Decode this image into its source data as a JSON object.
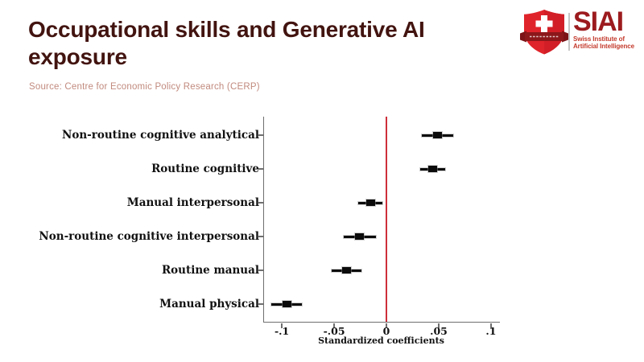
{
  "header": {
    "title": "Occupational skills and Generative AI exposure",
    "source": "Source: Centre for Economic Policy Research (CERP)"
  },
  "logo": {
    "acronym": "SIAI",
    "name_line1": "Swiss Institute of",
    "name_line2": "Artificial Intelligence"
  },
  "colors": {
    "title_maroon": "#421410",
    "source_salmon": "#c18a7e",
    "logo_shield_red": "#e0242b",
    "logo_banner_dark_red": "#8c181b",
    "logo_acronym_dark_red": "#9c1b1e",
    "logo_name_red": "#c43b2d",
    "zero_line_red": "#cd2e3a",
    "axis_gray": "#6f6f6f",
    "marker_black": "#0b0b0b",
    "background": "#ffffff"
  },
  "chart_data": {
    "type": "scatter",
    "subtype": "coefficient-plot-with-95ci",
    "title": "Occupational skills and Generative AI exposure",
    "xlabel": "Standardized coefficients",
    "ylabel": "",
    "grid": false,
    "legend": "none",
    "xlim": [
      -0.117,
      0.1085
    ],
    "zero_line": 0,
    "x_ticks": [
      {
        "v": -0.1,
        "label": "-.1"
      },
      {
        "v": -0.05,
        "label": "-.05"
      },
      {
        "v": 0,
        "label": "0"
      },
      {
        "v": 0.05,
        "label": ".05"
      },
      {
        "v": 0.1,
        "label": ".1"
      }
    ],
    "points": [
      {
        "label": "Non-routine cognitive analytical",
        "value": 0.049,
        "ci_low": 0.034,
        "ci_high": 0.064
      },
      {
        "label": "Routine cognitive",
        "value": 0.044,
        "ci_low": 0.032,
        "ci_high": 0.056
      },
      {
        "label": "Manual interpersonal",
        "value": -0.015,
        "ci_low": -0.027,
        "ci_high": -0.004
      },
      {
        "label": "Non-routine cognitive interpersonal",
        "value": -0.026,
        "ci_low": -0.041,
        "ci_high": -0.01
      },
      {
        "label": "Routine manual",
        "value": -0.038,
        "ci_low": -0.052,
        "ci_high": -0.024
      },
      {
        "label": "Manual physical",
        "value": -0.095,
        "ci_low": -0.11,
        "ci_high": -0.081
      }
    ]
  }
}
